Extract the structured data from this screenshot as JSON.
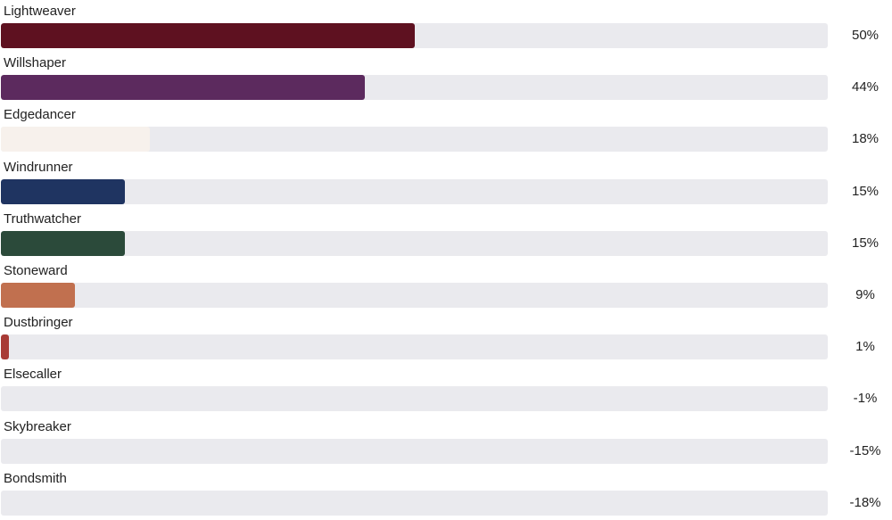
{
  "chart_data": {
    "type": "bar",
    "orientation": "horizontal",
    "categories": [
      "Lightweaver",
      "Willshaper",
      "Edgedancer",
      "Windrunner",
      "Truthwatcher",
      "Stoneward",
      "Dustbringer",
      "Elsecaller",
      "Skybreaker",
      "Bondsmith"
    ],
    "values": [
      50,
      44,
      18,
      15,
      15,
      9,
      1,
      -1,
      -15,
      -18
    ],
    "value_labels": [
      "50%",
      "44%",
      "18%",
      "15%",
      "15%",
      "9%",
      "1%",
      "-1%",
      "-15%",
      "-18%"
    ],
    "colors": [
      "#5e1120",
      "#5c2a5e",
      "#f7f1ec",
      "#1f3461",
      "#2b4a3a",
      "#c1704f",
      "#a83b36",
      "#cccccc",
      "#cccccc",
      "#cccccc"
    ],
    "track_color": "#eaeaee",
    "xlim": [
      0,
      100
    ],
    "unit": "%",
    "title": "",
    "xlabel": "",
    "ylabel": "",
    "legend": "none",
    "grid": false
  }
}
